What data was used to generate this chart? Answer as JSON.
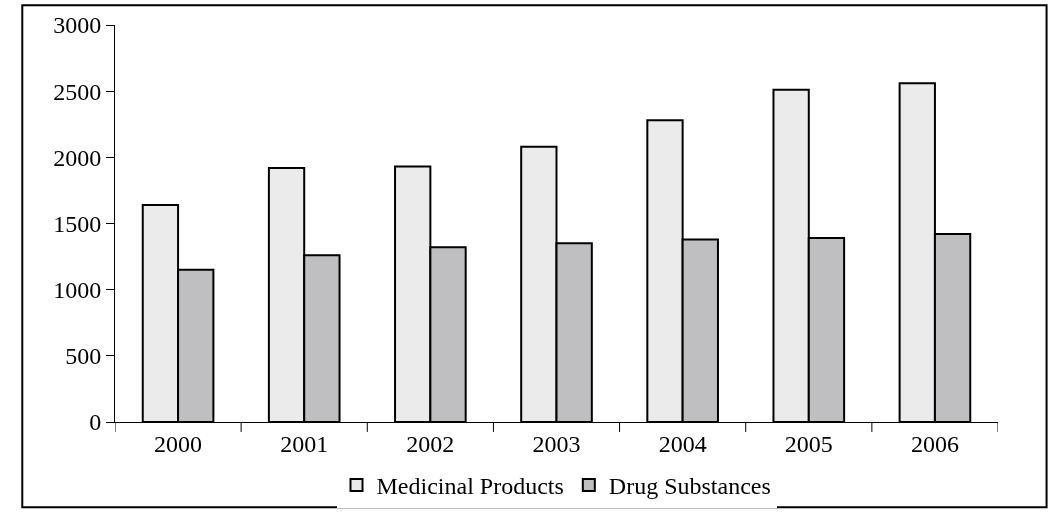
{
  "chart_data": {
    "type": "bar",
    "categories": [
      "2000",
      "2001",
      "2002",
      "2003",
      "2004",
      "2005",
      "2006"
    ],
    "series": [
      {
        "name": "Medicinal Products",
        "color": "#ebebeb",
        "values": [
          1640,
          1920,
          1930,
          2080,
          2280,
          2510,
          2560
        ]
      },
      {
        "name": "Drug Substances",
        "color": "#bfbfc1",
        "values": [
          1150,
          1260,
          1320,
          1350,
          1380,
          1390,
          1420
        ]
      }
    ],
    "ylim": [
      0,
      3000
    ],
    "yticks": [
      0,
      500,
      1000,
      1500,
      2000,
      2500,
      3000
    ],
    "legend": "bottom"
  }
}
